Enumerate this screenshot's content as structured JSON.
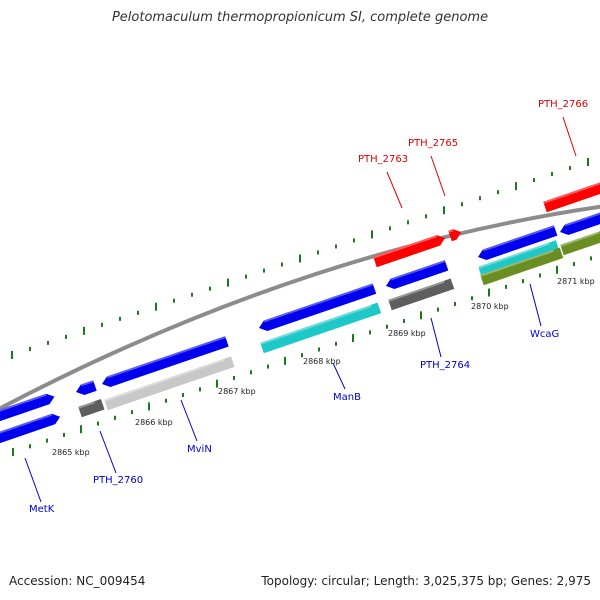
{
  "title": "Pelotomaculum thermopropionicum SI, complete genome",
  "footer": {
    "accession": "Accession: NC_009454",
    "summary": "Topology: circular; Length: 3,025,375 bp; Genes: 2,975"
  },
  "colors": {
    "blue_gene": "#0000ee",
    "light_gray_gene": "#c8c8c8",
    "dark_gray_gene": "#5e5e5e",
    "cyan_gene": "#1fc8c8",
    "olive_gene": "#6b8e23",
    "red_gene": "#ff0000",
    "backbone": "#8c8c8c",
    "tick_green": "#1a7a1a",
    "label_blue": "#0000cc",
    "label_red": "#dd0000"
  },
  "scale_labels": [
    {
      "text": "2865 kbp"
    },
    {
      "text": "2866 kbp"
    },
    {
      "text": "2867 kbp"
    },
    {
      "text": "2868 kbp"
    },
    {
      "text": "2869 kbp"
    },
    {
      "text": "2870 kbp"
    },
    {
      "text": "2871 kbp"
    }
  ],
  "gene_labels": [
    {
      "text": "MetK",
      "color": "label_blue"
    },
    {
      "text": "PTH_2760",
      "color": "label_blue"
    },
    {
      "text": "MviN",
      "color": "label_blue"
    },
    {
      "text": "ManB",
      "color": "label_blue"
    },
    {
      "text": "PTH_2764",
      "color": "label_blue"
    },
    {
      "text": "WcaG",
      "color": "label_blue"
    },
    {
      "text": "PTH_2763",
      "color": "label_red"
    },
    {
      "text": "PTH_2765",
      "color": "label_red"
    },
    {
      "text": "PTH_2766",
      "color": "label_red"
    }
  ]
}
